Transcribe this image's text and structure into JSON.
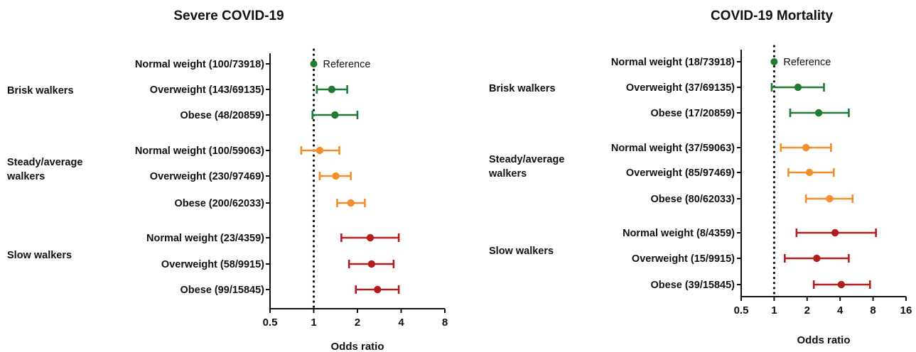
{
  "colors": {
    "brisk": "#1f7a33",
    "steady": "#f28e2b",
    "slow": "#b01e1e",
    "axis": "#111111"
  },
  "chart_data": [
    {
      "type": "forest",
      "title": "Severe COVID-19",
      "xlabel": "Odds ratio",
      "xscale": "log2",
      "xlim": [
        0.5,
        8
      ],
      "xticks": [
        "0.5",
        "1",
        "2",
        "4",
        "8"
      ],
      "reference_line": 1,
      "reference_label": "Reference",
      "groups": [
        {
          "name": "Brisk walkers",
          "color_key": "brisk",
          "rows": [
            {
              "label": "Normal weight (100/73918)",
              "or": 1.0,
              "lo": null,
              "hi": null,
              "reference": true
            },
            {
              "label": "Overweight (143/69135)",
              "or": 1.33,
              "lo": 1.05,
              "hi": 1.7
            },
            {
              "label": "Obese (48/20859)",
              "or": 1.4,
              "lo": 0.98,
              "hi": 2.0
            }
          ]
        },
        {
          "name": "Steady/average walkers",
          "color_key": "steady",
          "rows": [
            {
              "label": "Normal weight (100/59063)",
              "or": 1.1,
              "lo": 0.82,
              "hi": 1.5
            },
            {
              "label": "Overweight (230/97469)",
              "or": 1.42,
              "lo": 1.1,
              "hi": 1.8
            },
            {
              "label": "Obese (200/62033)",
              "or": 1.8,
              "lo": 1.45,
              "hi": 2.25
            }
          ]
        },
        {
          "name": "Slow walkers",
          "color_key": "slow",
          "rows": [
            {
              "label": "Normal weight (23/4359)",
              "or": 2.45,
              "lo": 1.55,
              "hi": 3.85
            },
            {
              "label": "Overweight (58/9915)",
              "or": 2.5,
              "lo": 1.75,
              "hi": 3.55
            },
            {
              "label": "Obese (99/15845)",
              "or": 2.75,
              "lo": 1.95,
              "hi": 3.85
            }
          ]
        }
      ]
    },
    {
      "type": "forest",
      "title": "COVID-19 Mortality",
      "xlabel": "Odds ratio",
      "xscale": "log2",
      "xlim": [
        0.5,
        16
      ],
      "xticks": [
        "0.5",
        "1",
        "2",
        "4",
        "8",
        "16"
      ],
      "reference_line": 1,
      "reference_label": "Reference",
      "groups": [
        {
          "name": "Brisk walkers",
          "color_key": "brisk",
          "rows": [
            {
              "label": "Normal weight (18/73918)",
              "or": 1.0,
              "lo": null,
              "hi": null,
              "reference": true
            },
            {
              "label": "Overweight (37/69135)",
              "or": 1.65,
              "lo": 0.95,
              "hi": 2.85
            },
            {
              "label": "Obese (17/20859)",
              "or": 2.55,
              "lo": 1.4,
              "hi": 4.8
            }
          ]
        },
        {
          "name": "Steady/average walkers",
          "color_key": "steady",
          "rows": [
            {
              "label": "Normal weight (37/59063)",
              "or": 1.95,
              "lo": 1.15,
              "hi": 3.3
            },
            {
              "label": "Overweight (85/97469)",
              "or": 2.1,
              "lo": 1.35,
              "hi": 3.5
            },
            {
              "label": "Obese (80/62033)",
              "or": 3.2,
              "lo": 1.95,
              "hi": 5.2
            }
          ]
        },
        {
          "name": "Slow walkers",
          "color_key": "slow",
          "rows": [
            {
              "label": "Normal weight (8/4359)",
              "or": 3.6,
              "lo": 1.6,
              "hi": 8.5
            },
            {
              "label": "Overweight (15/9915)",
              "or": 2.45,
              "lo": 1.25,
              "hi": 4.8
            },
            {
              "label": "Obese (39/15845)",
              "or": 4.1,
              "lo": 2.3,
              "hi": 7.5
            }
          ]
        }
      ]
    }
  ]
}
